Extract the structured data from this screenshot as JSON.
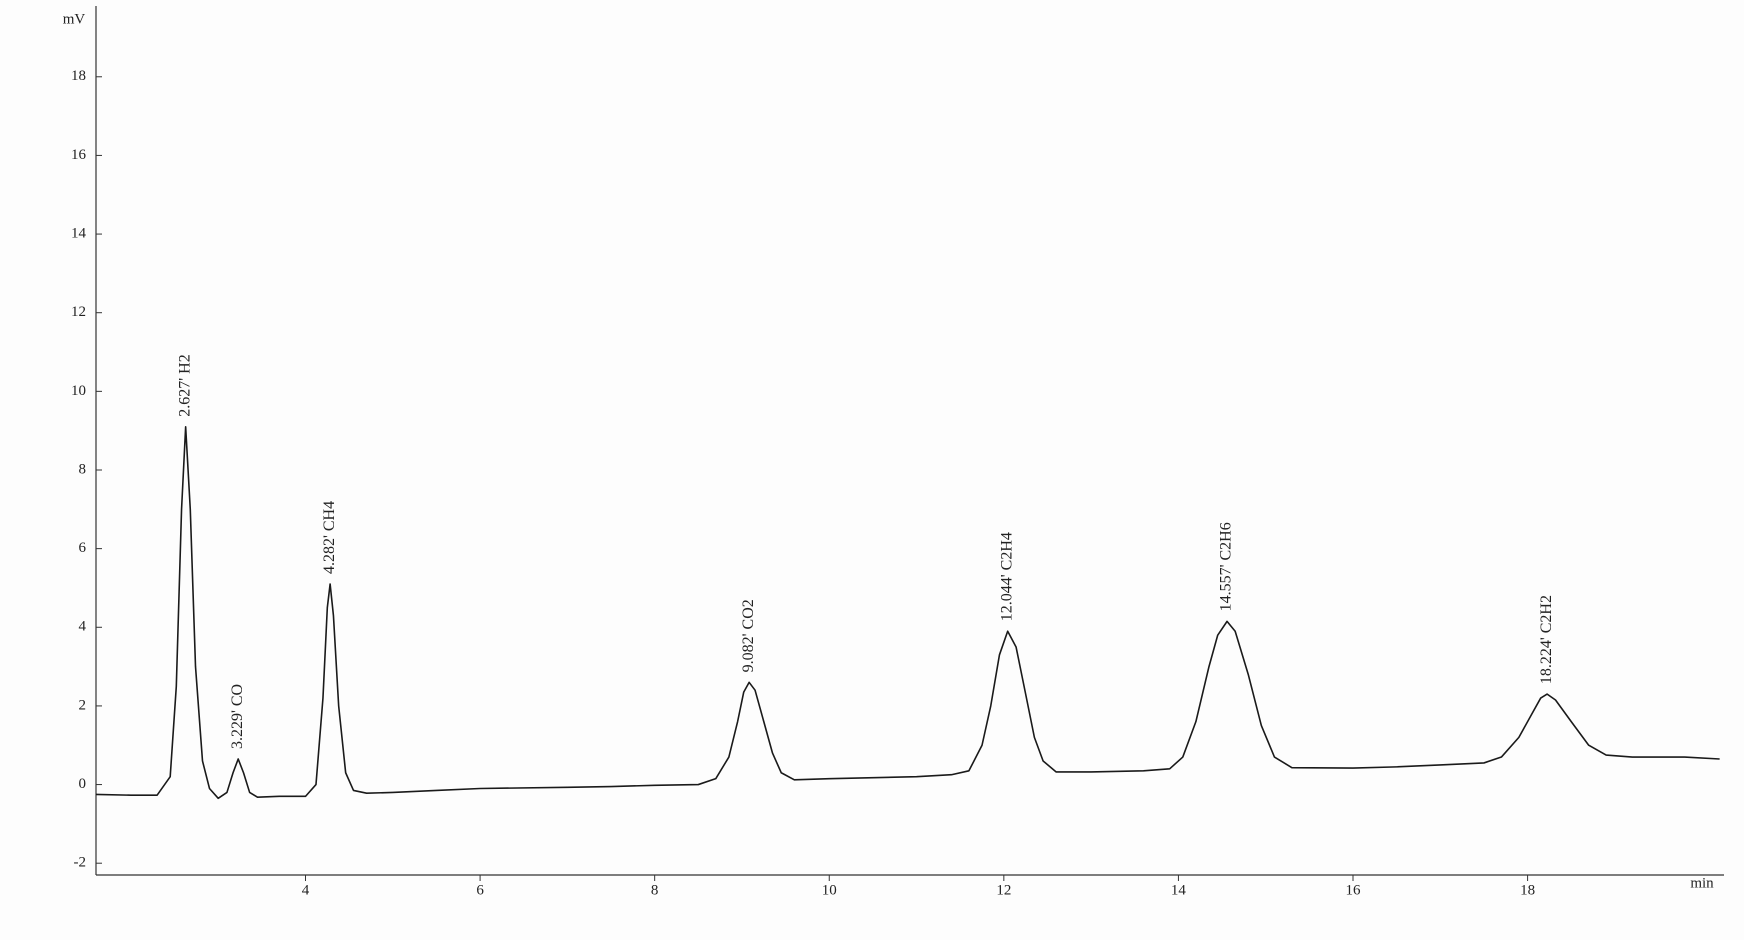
{
  "chart_data": {
    "type": "line",
    "xlabel": "min",
    "ylabel": "mV",
    "color": "#1a1a1a",
    "xlim": [
      1.6,
      20.25
    ],
    "ylim": [
      -2.3,
      19.8
    ],
    "xticks": [
      4,
      6,
      8,
      10,
      12,
      14,
      16,
      18
    ],
    "yticks": [
      -2,
      0,
      2,
      4,
      6,
      8,
      10,
      12,
      14,
      16,
      18
    ],
    "x": [
      1.6,
      2.0,
      2.3,
      2.45,
      2.52,
      2.58,
      2.627,
      2.68,
      2.74,
      2.82,
      2.9,
      3.0,
      3.1,
      3.17,
      3.229,
      3.29,
      3.36,
      3.45,
      3.7,
      4.0,
      4.12,
      4.2,
      4.25,
      4.282,
      4.32,
      4.38,
      4.46,
      4.55,
      4.7,
      5.0,
      5.5,
      6.0,
      7.0,
      7.5,
      8.0,
      8.5,
      8.7,
      8.85,
      8.95,
      9.02,
      9.082,
      9.15,
      9.25,
      9.35,
      9.45,
      9.6,
      10.0,
      11.0,
      11.4,
      11.6,
      11.75,
      11.85,
      11.95,
      12.044,
      12.14,
      12.25,
      12.35,
      12.45,
      12.6,
      13.0,
      13.6,
      13.9,
      14.05,
      14.2,
      14.35,
      14.45,
      14.557,
      14.65,
      14.8,
      14.95,
      15.1,
      15.3,
      16.0,
      16.5,
      17.0,
      17.5,
      17.7,
      17.9,
      18.05,
      18.15,
      18.224,
      18.32,
      18.5,
      18.7,
      18.9,
      19.2,
      19.8,
      20.2
    ],
    "values": [
      -0.25,
      -0.27,
      -0.27,
      0.2,
      2.5,
      7.0,
      9.1,
      7.0,
      3.0,
      0.6,
      -0.1,
      -0.35,
      -0.2,
      0.3,
      0.65,
      0.3,
      -0.2,
      -0.32,
      -0.3,
      -0.3,
      0.0,
      2.2,
      4.5,
      5.1,
      4.3,
      2.0,
      0.3,
      -0.15,
      -0.22,
      -0.2,
      -0.15,
      -0.1,
      -0.07,
      -0.05,
      -0.02,
      0.0,
      0.15,
      0.7,
      1.6,
      2.35,
      2.6,
      2.4,
      1.6,
      0.8,
      0.3,
      0.12,
      0.15,
      0.2,
      0.25,
      0.35,
      1.0,
      2.0,
      3.3,
      3.9,
      3.5,
      2.3,
      1.2,
      0.6,
      0.32,
      0.32,
      0.35,
      0.4,
      0.7,
      1.6,
      3.0,
      3.8,
      4.15,
      3.9,
      2.8,
      1.5,
      0.7,
      0.43,
      0.42,
      0.45,
      0.5,
      0.55,
      0.7,
      1.2,
      1.8,
      2.2,
      2.3,
      2.15,
      1.6,
      1.0,
      0.75,
      0.7,
      0.7,
      0.65
    ],
    "annotations": [
      {
        "text": "2.627' H2",
        "x": 2.627,
        "y": 9.1
      },
      {
        "text": "3.229' CO",
        "x": 3.229,
        "y": 0.65
      },
      {
        "text": "4.282' CH4",
        "x": 4.282,
        "y": 5.1
      },
      {
        "text": "9.082' CO2",
        "x": 9.082,
        "y": 2.6
      },
      {
        "text": "12.044' C2H4",
        "x": 12.044,
        "y": 3.9
      },
      {
        "text": "14.557' C2H6",
        "x": 14.557,
        "y": 4.15
      },
      {
        "text": "18.224' C2H2",
        "x": 18.224,
        "y": 2.3
      }
    ]
  }
}
